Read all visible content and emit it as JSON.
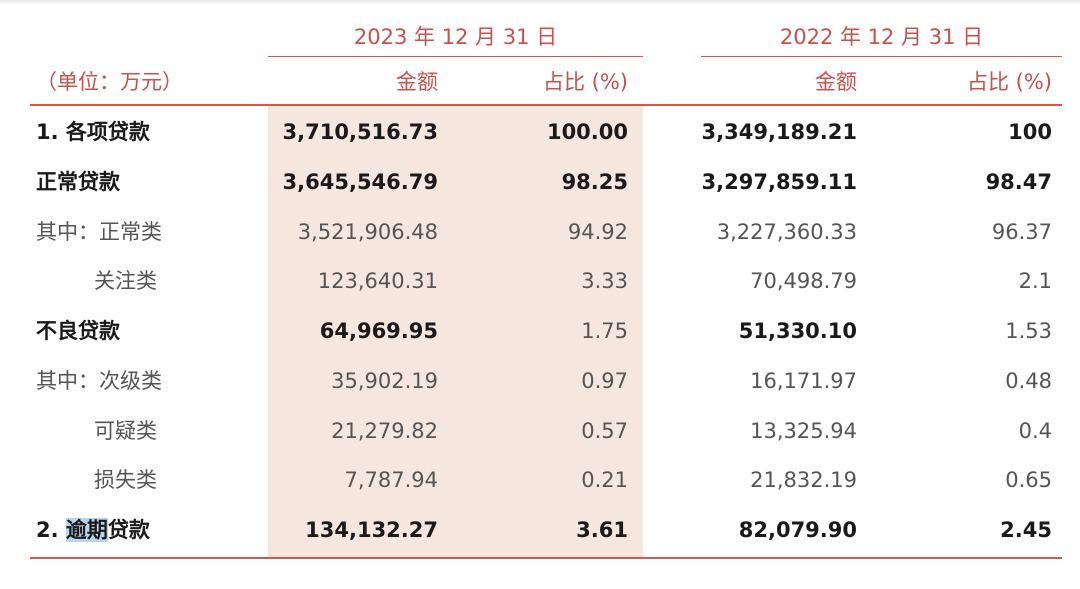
{
  "header": {
    "year_2023": "2023 年 12 月 31 日",
    "year_2022": "2022 年 12 月 31 日",
    "unit": "（单位：万元）",
    "amount_label": "金额",
    "ratio_label": "占比 (%)"
  },
  "rows": [
    {
      "label": "1. 各项贷款",
      "a2023": "3,710,516.73",
      "r2023": "100.00",
      "a2022": "3,349,189.21",
      "r2022": "100"
    },
    {
      "label": "正常贷款",
      "a2023": "3,645,546.79",
      "r2023": "98.25",
      "a2022": "3,297,859.11",
      "r2022": "98.47"
    },
    {
      "label": "其中：正常类",
      "a2023": "3,521,906.48",
      "r2023": "94.92",
      "a2022": "3,227,360.33",
      "r2022": "96.37"
    },
    {
      "label": "关注类",
      "a2023": "123,640.31",
      "r2023": "3.33",
      "a2022": "70,498.79",
      "r2022": "2.1"
    },
    {
      "label": "不良贷款",
      "a2023": "64,969.95",
      "r2023": "1.75",
      "a2022": "51,330.10",
      "r2022": "1.53"
    },
    {
      "label": "其中：次级类",
      "a2023": "35,902.19",
      "r2023": "0.97",
      "a2022": "16,171.97",
      "r2022": "0.48"
    },
    {
      "label": "可疑类",
      "a2023": "21,279.82",
      "r2023": "0.57",
      "a2022": "13,325.94",
      "r2022": "0.4"
    },
    {
      "label": "损失类",
      "a2023": "7,787.94",
      "r2023": "0.21",
      "a2022": "21,832.19",
      "r2022": "0.65"
    },
    {
      "label_prefix": "2. ",
      "label_highlight": "逾期",
      "label_suffix": "贷款",
      "a2023": "134,132.27",
      "r2023": "3.61",
      "a2022": "82,079.90",
      "r2022": "2.45"
    }
  ]
}
